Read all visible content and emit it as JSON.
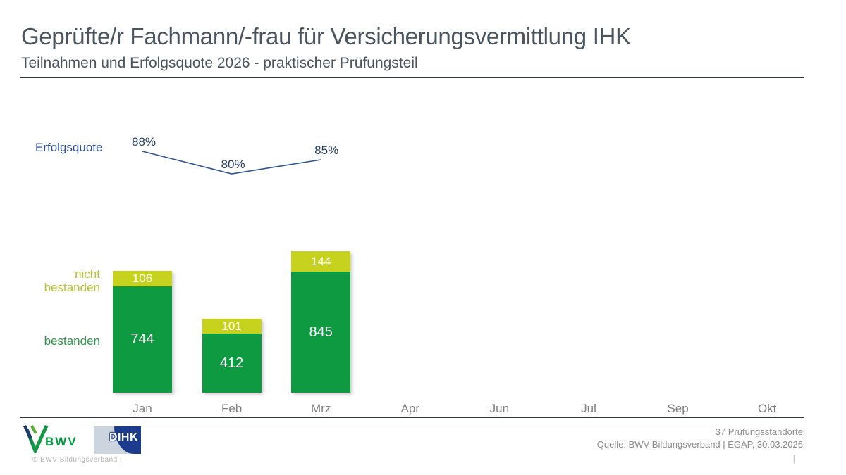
{
  "header": {
    "title": "Geprüfte/r Fachmann/-frau für Versicherungsvermittlung IHK",
    "subtitle": "Teilnahmen und Erfolgsquote 2026 - praktischer Prüfungsteil"
  },
  "chart_data": {
    "type": "combo",
    "categories": [
      "Jan",
      "Feb",
      "Mrz",
      "Apr",
      "Jun",
      "Jul",
      "Sep",
      "Okt"
    ],
    "series": [
      {
        "name": "bestanden",
        "type": "bar",
        "color": "#0d9a40",
        "values": [
          744,
          412,
          845
        ]
      },
      {
        "name": "nicht bestanden",
        "type": "bar",
        "color": "#c6d21e",
        "values": [
          106,
          101,
          144
        ]
      },
      {
        "name": "Erfolgsquote",
        "type": "line",
        "color": "#2e5395",
        "unit": "%",
        "values": [
          88,
          80,
          85
        ]
      }
    ],
    "legend": {
      "erfolgsquote": "Erfolgsquote",
      "nicht_bestanden": "nicht bestanden",
      "bestanden": "bestanden"
    },
    "value_label_color": "#ffffff",
    "pct_label_color": "#203864",
    "grid": false,
    "x_axis_shown_months_note": "Mai, Aug, Nov, Dez not shown"
  },
  "footer": {
    "bwv_logo_text": "BWV",
    "dihk_logo_text": "DIHK",
    "copyright": "©  BWV Bildungsverband  |",
    "note_line1": "37 Prüfungsstandorte",
    "note_line2": "Quelle: BWV Bildungsverband | EGAP, 30.03.2026",
    "page_separator": "|"
  },
  "colors": {
    "bar_green": "#0d9a40",
    "bar_yellow_green": "#c6d21e",
    "line_blue": "#2e5395",
    "erfolgsquote_blue": "#2b4d9b",
    "pct_label_blue": "#203864",
    "title_gray": "#4a545e",
    "axis_dark": "#33373d",
    "month_gray": "#7f7f7f",
    "bwv_green": "#009b3e",
    "dihk_blue": "#1d3b8c"
  }
}
